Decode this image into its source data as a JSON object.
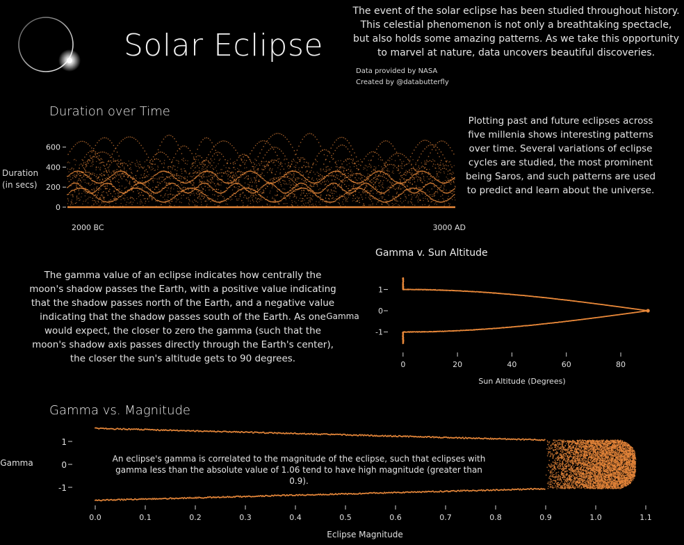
{
  "header": {
    "title": "Solar Eclipse",
    "intro": "The event of the solar eclipse has been studied throughout history. This celestial phenomenon is not only a breathtaking spectacle, but also holds some amazing patterns. As we take this opportunity to marvel at nature, data uncovers beautiful discoveries.",
    "credit_source": "Data provided by NASA",
    "credit_author": "Created by @databutterfly"
  },
  "sections": {
    "duration_title": "Duration over Time",
    "duration_ylabel_line1": "Duration",
    "duration_ylabel_line2": "(in secs)",
    "duration_note": "Plotting past and future eclipses across five millenia shows interesting patterns over time. Several variations of eclipse cycles are studied, the most prominent being Saros, and such patterns are used to predict and learn about the universe.",
    "gamma_sun_title": "Gamma v. Sun Altitude",
    "gamma_note": "The gamma value of an eclipse indicates how centrally the moon's shadow passes the Earth, with a positive value indicating that the shadow passes north of the Earth, and a negative value indicating that the shadow passes south of the Earth. As one would expect, the closer to zero the gamma (such that the moon's shadow axis passes directly through the Earth's center), the closer the sun's altitude gets to 90 degrees.",
    "gamma_mag_title": "Gamma vs. Magnitude",
    "gamma_mag_note": "An eclipse's gamma is correlated to the magnitude of the eclipse, such that eclipses with gamma less than the absolute value of 1.06 tend to have high magnitude (greater than 0.9)."
  },
  "colors": {
    "accent": "#e8883a",
    "background": "#000000",
    "text": "#e8e8e8"
  },
  "chart_data": [
    {
      "type": "scatter",
      "title": "Duration over Time",
      "xlabel": "",
      "ylabel": "Duration (in secs)",
      "x_tick_labels": [
        "2000 BC",
        "3000 AD"
      ],
      "ylim": [
        0,
        750
      ],
      "yticks": [
        0,
        200,
        400,
        600
      ],
      "y_tick_labels": [
        "0",
        "200",
        "400",
        "600"
      ],
      "grid": false,
      "pattern": "oscillating Saros-cycle arcs",
      "arc_families": [
        {
          "peak": 740,
          "trough": 430,
          "arcs": 13
        },
        {
          "peak": 640,
          "trough": 250,
          "arcs": 12
        },
        {
          "peak": 520,
          "trough": 120,
          "arcs": 14
        },
        {
          "peak": 430,
          "trough": 0,
          "arcs": 17
        },
        {
          "peak": 360,
          "trough": 60,
          "arcs": 10
        }
      ],
      "dense_bands": [
        {
          "center": 300,
          "amplitude": 60,
          "cycles": 9
        },
        {
          "center": 190,
          "amplitude": 50,
          "cycles": 12
        },
        {
          "center": 120,
          "amplitude": 70,
          "cycles": 7
        }
      ],
      "baseline": 0
    },
    {
      "type": "scatter",
      "title": "Gamma v. Sun Altitude",
      "xlabel": "Sun Altitude (Degrees)",
      "ylabel": "Gamma",
      "xlim": [
        -2,
        92
      ],
      "ylim": [
        -1.8,
        1.8
      ],
      "xticks": [
        0,
        20,
        40,
        60,
        80
      ],
      "x_tick_labels": [
        "0",
        "20",
        "40",
        "60",
        "80"
      ],
      "yticks": [
        1,
        0,
        -1
      ],
      "y_tick_labels": [
        "1",
        "0",
        "-1"
      ],
      "grid": false,
      "relation": "|gamma| = cos(altitude)",
      "x_range": [
        0,
        90
      ],
      "gamma_at_x0": [
        -1.55,
        1.55
      ]
    },
    {
      "type": "scatter",
      "title": "Gamma vs. Magnitude",
      "xlabel": "Eclipse Magnitude",
      "ylabel": "Gamma",
      "xlim": [
        -0.01,
        1.12
      ],
      "ylim": [
        -1.7,
        1.7
      ],
      "xticks": [
        0.0,
        0.1,
        0.2,
        0.3,
        0.4,
        0.5,
        0.6,
        0.7,
        0.8,
        0.9,
        1.0,
        1.1
      ],
      "x_tick_labels": [
        "0.0",
        "0.1",
        "0.2",
        "0.3",
        "0.4",
        "0.5",
        "0.6",
        "0.7",
        "0.8",
        "0.9",
        "1.0",
        "1.1"
      ],
      "yticks": [
        1,
        0,
        -1
      ],
      "y_tick_labels": [
        "1",
        "0",
        "-1"
      ],
      "grid": false,
      "edges": [
        {
          "magnitude": 0.0,
          "gamma_upper": 1.57,
          "gamma_lower": -1.57
        },
        {
          "magnitude": 0.9,
          "gamma_upper": 1.06,
          "gamma_lower": -1.06
        }
      ],
      "dense_region": {
        "magnitude": [
          0.9,
          1.08
        ],
        "gamma": [
          -1.06,
          1.06
        ]
      }
    }
  ]
}
